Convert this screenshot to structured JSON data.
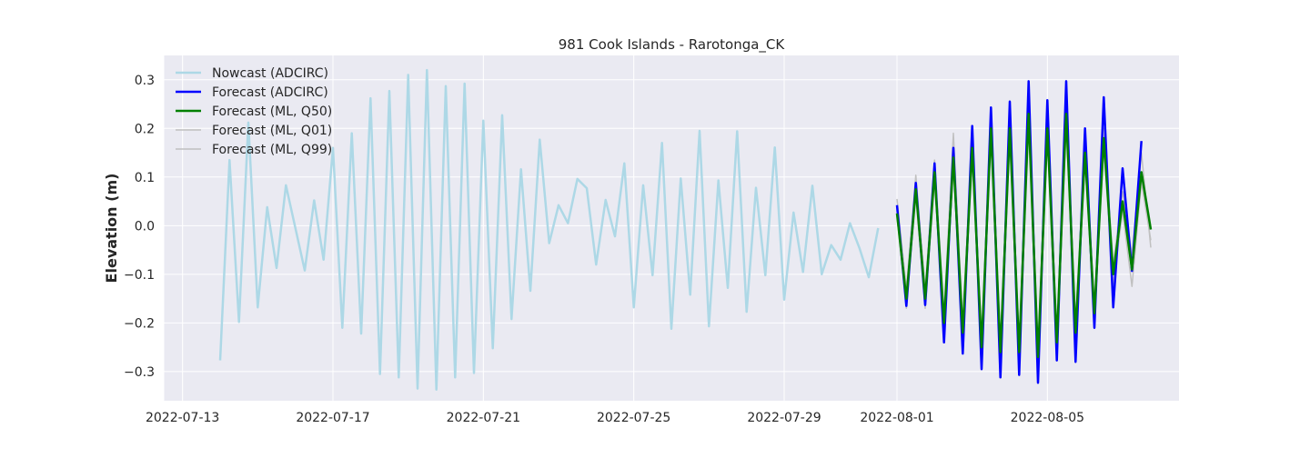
{
  "chart_data": {
    "type": "line",
    "title": "981 Cook Islands - Rarotonga_CK",
    "xlabel": "",
    "ylabel": "Elevation (m)",
    "x_axis_type": "date",
    "xlim": [
      "2022-07-12T12:00",
      "2022-08-08T12:00"
    ],
    "ylim": [
      -0.36,
      0.35
    ],
    "x_ticks": [
      "2022-07-13",
      "2022-07-17",
      "2022-07-21",
      "2022-07-25",
      "2022-07-29",
      "2022-08-01",
      "2022-08-05"
    ],
    "y_ticks": [
      0.3,
      0.2,
      0.1,
      0.0,
      -0.1,
      -0.2,
      -0.3
    ],
    "y_tick_labels": [
      "0.3",
      "0.2",
      "0.1",
      "0.0",
      "−0.1",
      "−0.2",
      "−0.3"
    ],
    "grid": true,
    "background": "#eaeaf2",
    "legend_position": "upper-left",
    "series": [
      {
        "name": "Nowcast (ADCIRC)",
        "color": "#add8e6",
        "line_width": 2.5,
        "x": [
          "2022-07-14T00:00",
          "2022-07-14T06:00",
          "2022-07-14T12:00",
          "2022-07-14T18:00",
          "2022-07-15T00:00",
          "2022-07-15T06:00",
          "2022-07-15T12:00",
          "2022-07-15T18:00",
          "2022-07-16T00:00",
          "2022-07-16T06:00",
          "2022-07-16T12:00",
          "2022-07-16T18:00",
          "2022-07-17T00:00",
          "2022-07-17T06:00",
          "2022-07-17T12:00",
          "2022-07-17T18:00",
          "2022-07-18T00:00",
          "2022-07-18T06:00",
          "2022-07-18T12:00",
          "2022-07-18T18:00",
          "2022-07-19T00:00",
          "2022-07-19T06:00",
          "2022-07-19T12:00",
          "2022-07-19T18:00",
          "2022-07-20T00:00",
          "2022-07-20T06:00",
          "2022-07-20T12:00",
          "2022-07-20T18:00",
          "2022-07-21T00:00",
          "2022-07-21T06:00",
          "2022-07-21T12:00",
          "2022-07-21T18:00",
          "2022-07-22T00:00",
          "2022-07-22T06:00",
          "2022-07-22T12:00",
          "2022-07-22T18:00",
          "2022-07-23T00:00",
          "2022-07-23T06:00",
          "2022-07-23T12:00",
          "2022-07-23T18:00",
          "2022-07-24T00:00",
          "2022-07-24T06:00",
          "2022-07-24T12:00",
          "2022-07-24T18:00",
          "2022-07-25T00:00",
          "2022-07-25T06:00",
          "2022-07-25T12:00",
          "2022-07-25T18:00",
          "2022-07-26T00:00",
          "2022-07-26T06:00",
          "2022-07-26T12:00",
          "2022-07-26T18:00",
          "2022-07-27T00:00",
          "2022-07-27T06:00",
          "2022-07-27T12:00",
          "2022-07-27T18:00",
          "2022-07-28T00:00",
          "2022-07-28T06:00",
          "2022-07-28T12:00",
          "2022-07-28T18:00",
          "2022-07-29T00:00",
          "2022-07-29T06:00",
          "2022-07-29T12:00",
          "2022-07-29T18:00",
          "2022-07-30T00:00",
          "2022-07-30T06:00",
          "2022-07-30T12:00",
          "2022-07-30T18:00",
          "2022-07-31T00:00",
          "2022-07-31T06:00",
          "2022-07-31T12:00"
        ],
        "y": [
          -0.277,
          0.135,
          -0.198,
          0.212,
          -0.168,
          0.038,
          -0.087,
          0.083,
          -0.005,
          -0.092,
          0.052,
          -0.07,
          0.16,
          -0.21,
          0.19,
          -0.222,
          0.262,
          -0.305,
          0.277,
          -0.312,
          0.31,
          -0.335,
          0.32,
          -0.337,
          0.287,
          -0.312,
          0.292,
          -0.303,
          0.216,
          -0.252,
          0.227,
          -0.192,
          0.116,
          -0.134,
          0.177,
          -0.036,
          0.042,
          0.005,
          0.096,
          0.077,
          -0.08,
          0.053,
          -0.022,
          0.128,
          -0.168,
          0.083,
          -0.102,
          0.17,
          -0.212,
          0.097,
          -0.142,
          0.195,
          -0.207,
          0.093,
          -0.128,
          0.194,
          -0.177,
          0.078,
          -0.102,
          0.161,
          -0.152,
          0.027,
          -0.095,
          0.082,
          -0.1,
          -0.04,
          -0.07,
          0.005,
          -0.046,
          -0.106,
          -0.005
        ]
      },
      {
        "name": "Forecast (ADCIRC)",
        "color": "#0000ff",
        "line_width": 2.5,
        "x": [
          "2022-08-01T00:00",
          "2022-08-01T06:00",
          "2022-08-01T12:00",
          "2022-08-01T18:00",
          "2022-08-02T00:00",
          "2022-08-02T06:00",
          "2022-08-02T12:00",
          "2022-08-02T18:00",
          "2022-08-03T00:00",
          "2022-08-03T06:00",
          "2022-08-03T12:00",
          "2022-08-03T18:00",
          "2022-08-04T00:00",
          "2022-08-04T06:00",
          "2022-08-04T12:00",
          "2022-08-04T18:00",
          "2022-08-05T00:00",
          "2022-08-05T06:00",
          "2022-08-05T12:00",
          "2022-08-05T18:00",
          "2022-08-06T00:00",
          "2022-08-06T06:00",
          "2022-08-06T12:00",
          "2022-08-06T18:00",
          "2022-08-07T00:00",
          "2022-08-07T06:00",
          "2022-08-07T12:00",
          "2022-08-07T18:00"
        ],
        "y": [
          0.042,
          -0.165,
          0.088,
          -0.163,
          0.128,
          -0.24,
          0.16,
          -0.263,
          0.205,
          -0.295,
          0.243,
          -0.312,
          0.255,
          -0.307,
          0.297,
          -0.323,
          0.258,
          -0.277,
          0.297,
          -0.28,
          0.2,
          -0.21,
          0.264,
          -0.168,
          0.118,
          -0.093,
          0.174,
          null
        ]
      },
      {
        "name": "Forecast (ML, Q50)",
        "color": "#008000",
        "line_width": 2.5,
        "x": [
          "2022-08-01T00:00",
          "2022-08-01T06:00",
          "2022-08-01T12:00",
          "2022-08-01T18:00",
          "2022-08-02T00:00",
          "2022-08-02T06:00",
          "2022-08-02T12:00",
          "2022-08-02T18:00",
          "2022-08-03T00:00",
          "2022-08-03T06:00",
          "2022-08-03T12:00",
          "2022-08-03T18:00",
          "2022-08-04T00:00",
          "2022-08-04T06:00",
          "2022-08-04T12:00",
          "2022-08-04T18:00",
          "2022-08-05T00:00",
          "2022-08-05T06:00",
          "2022-08-05T12:00",
          "2022-08-05T18:00",
          "2022-08-06T00:00",
          "2022-08-06T06:00",
          "2022-08-06T12:00",
          "2022-08-06T18:00",
          "2022-08-07T00:00",
          "2022-08-07T06:00",
          "2022-08-07T12:00",
          "2022-08-07T18:00"
        ],
        "y": [
          0.025,
          -0.15,
          0.075,
          -0.15,
          0.11,
          -0.2,
          0.14,
          -0.22,
          0.16,
          -0.25,
          0.2,
          -0.26,
          0.2,
          -0.26,
          0.23,
          -0.27,
          0.2,
          -0.24,
          0.23,
          -0.22,
          0.15,
          -0.18,
          0.18,
          -0.1,
          0.05,
          -0.09,
          0.11,
          -0.008
        ]
      },
      {
        "name": "Forecast (ML, Q01)",
        "color": "#c0c0c0",
        "line_width": 1.5,
        "x": [
          "2022-08-01T00:00",
          "2022-08-01T06:00",
          "2022-08-01T12:00",
          "2022-08-01T18:00",
          "2022-08-02T00:00",
          "2022-08-02T06:00",
          "2022-08-02T12:00",
          "2022-08-02T18:00",
          "2022-08-03T00:00",
          "2022-08-03T06:00",
          "2022-08-03T12:00",
          "2022-08-03T18:00",
          "2022-08-04T00:00",
          "2022-08-04T06:00",
          "2022-08-04T12:00",
          "2022-08-04T18:00",
          "2022-08-05T00:00",
          "2022-08-05T06:00",
          "2022-08-05T12:00",
          "2022-08-05T18:00",
          "2022-08-06T00:00",
          "2022-08-06T06:00",
          "2022-08-06T12:00",
          "2022-08-06T18:00",
          "2022-08-07T00:00",
          "2022-08-07T06:00",
          "2022-08-07T12:00",
          "2022-08-07T18:00"
        ],
        "y": [
          0.02,
          -0.17,
          0.06,
          -0.17,
          0.09,
          -0.21,
          0.12,
          -0.23,
          0.14,
          -0.26,
          0.18,
          -0.27,
          0.18,
          -0.27,
          0.21,
          -0.28,
          0.18,
          -0.25,
          0.21,
          -0.23,
          0.13,
          -0.19,
          0.16,
          -0.12,
          0.03,
          -0.125,
          0.09,
          -0.03
        ]
      },
      {
        "name": "Forecast (ML, Q99)",
        "color": "#c0c0c0",
        "line_width": 1.5,
        "x": [
          "2022-08-01T00:00",
          "2022-08-01T06:00",
          "2022-08-01T12:00",
          "2022-08-01T18:00",
          "2022-08-02T00:00",
          "2022-08-02T06:00",
          "2022-08-02T12:00",
          "2022-08-02T18:00",
          "2022-08-03T00:00",
          "2022-08-03T06:00",
          "2022-08-03T12:00",
          "2022-08-03T18:00",
          "2022-08-04T00:00",
          "2022-08-04T06:00",
          "2022-08-04T12:00",
          "2022-08-04T18:00",
          "2022-08-05T00:00",
          "2022-08-05T06:00",
          "2022-08-05T12:00",
          "2022-08-05T18:00",
          "2022-08-06T00:00",
          "2022-08-06T06:00",
          "2022-08-06T12:00",
          "2022-08-06T18:00",
          "2022-08-07T00:00",
          "2022-08-07T06:00",
          "2022-08-07T12:00",
          "2022-08-07T18:00"
        ],
        "y": [
          0.055,
          -0.13,
          0.104,
          -0.13,
          0.135,
          -0.18,
          0.19,
          -0.2,
          0.18,
          -0.23,
          0.22,
          -0.24,
          0.22,
          -0.24,
          0.25,
          -0.25,
          0.22,
          -0.22,
          0.25,
          -0.2,
          0.17,
          -0.16,
          0.2,
          -0.08,
          0.07,
          -0.06,
          0.15,
          -0.045
        ]
      }
    ]
  }
}
